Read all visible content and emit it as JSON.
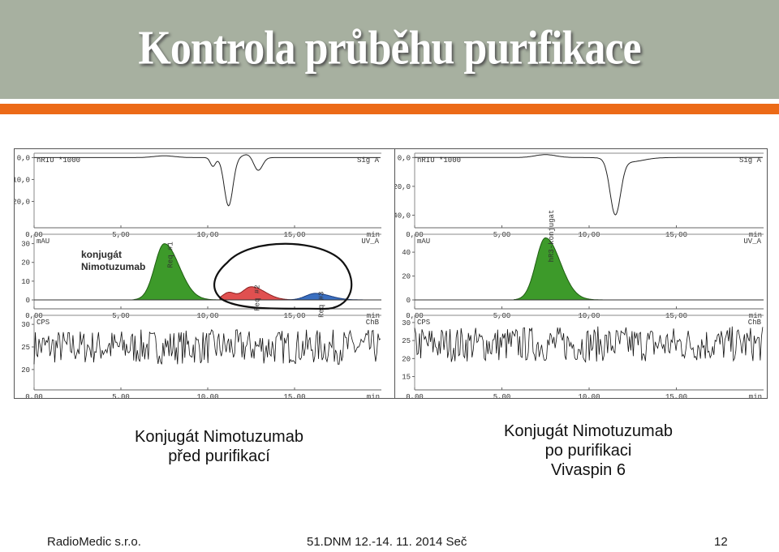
{
  "slide": {
    "title": "Kontrola průběhu purifikace",
    "caption_left": [
      "Konjugát Nimotuzumab",
      "před purifikací"
    ],
    "caption_right": [
      "Konjugát Nimotuzumab",
      "po purifikaci",
      "Vivaspin 6"
    ],
    "footer_left": "RadioMedic s.r.o.",
    "footer_center": "51.DNM 12.-14. 11. 2014 Seč",
    "footer_right": "12",
    "colors": {
      "title_bar": "#a7b0a0",
      "accent_bar": "#ec6a17",
      "peak_green": "#3d9a2a",
      "peak_red": "#e05050",
      "peak_blue": "#3a6fc0"
    }
  },
  "chart_data": [
    {
      "type": "line",
      "title": "",
      "note": "chromatogram before purification",
      "annotation_text": [
        "konjugát",
        "Nimotuzumab"
      ],
      "x_ticks": [
        "0,00",
        "5,00",
        "10,00",
        "15,00",
        "min"
      ],
      "panels": [
        {
          "unit": "nRIU *1000",
          "signal": "Sig A",
          "y_ticks": [
            "0,0",
            "-10,0",
            "-20,0"
          ],
          "ylim": [
            -25,
            2
          ]
        },
        {
          "unit": "mAU",
          "signal": "UV_A",
          "y_ticks": [
            "30",
            "20",
            "10",
            "0"
          ],
          "ylim": [
            0,
            35
          ],
          "peaks": [
            {
              "label": "Req #1",
              "time": 7.5,
              "height": 30,
              "color": "green"
            },
            {
              "label": "Req #2",
              "time": 12.5,
              "height": 7,
              "color": "red"
            },
            {
              "label": "Req #3",
              "time": 16.2,
              "height": 3.5,
              "color": "blue"
            }
          ]
        },
        {
          "unit": "CPS",
          "signal": "ChB",
          "y_ticks": [
            "30",
            "25",
            "20"
          ],
          "ylim": [
            18,
            32
          ]
        }
      ]
    },
    {
      "type": "line",
      "title": "",
      "note": "chromatogram after purification",
      "x_ticks": [
        "0,00",
        "5,00",
        "10,00",
        "15,00",
        "min"
      ],
      "panels": [
        {
          "unit": "nRIU *1000",
          "signal": "Sig A",
          "y_ticks": [
            "0,0",
            "-20,0",
            "-40,0"
          ],
          "ylim": [
            -42,
            3
          ]
        },
        {
          "unit": "mAU",
          "signal": "UV_A",
          "y_ticks": [
            "40",
            "20",
            "0"
          ],
          "ylim": [
            0,
            55
          ],
          "peaks": [
            {
              "label": "hR3-konjugat",
              "time": 7.5,
              "height": 52,
              "color": "green"
            }
          ]
        },
        {
          "unit": "CPS",
          "signal": "ChB",
          "y_ticks": [
            "30",
            "25",
            "20",
            "15"
          ],
          "ylim": [
            14,
            32
          ]
        }
      ]
    }
  ]
}
